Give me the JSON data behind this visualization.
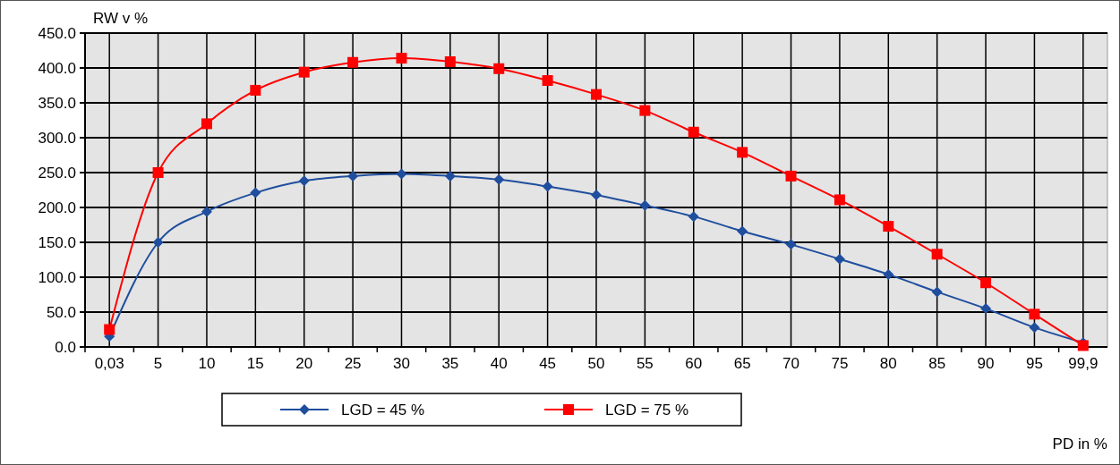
{
  "chart_data": {
    "type": "line",
    "xlabel": "PD in %",
    "ylabel": "RW v %",
    "categories": [
      "0,03",
      "5",
      "10",
      "15",
      "20",
      "25",
      "30",
      "35",
      "40",
      "45",
      "50",
      "55",
      "60",
      "65",
      "70",
      "75",
      "80",
      "85",
      "90",
      "95",
      "99,9"
    ],
    "series": [
      {
        "name": "LGD = 45 %",
        "color": "#1f4e9e",
        "marker": "diamond",
        "values": [
          15,
          150,
          194,
          221,
          238,
          245,
          248,
          245,
          240,
          230,
          218,
          203,
          187,
          166,
          147,
          126,
          104,
          79,
          55,
          28,
          6
        ]
      },
      {
        "name": "LGD = 75 %",
        "color": "#ff0000",
        "marker": "square",
        "values": [
          25,
          250,
          320,
          368,
          394,
          408,
          414,
          409,
          399,
          382,
          362,
          339,
          308,
          279,
          245,
          211,
          173,
          133,
          92,
          47,
          2
        ]
      }
    ],
    "ylim": [
      0,
      450
    ],
    "yticks": [
      {
        "value": 0,
        "label": "0.0"
      },
      {
        "value": 50,
        "label": "50.0"
      },
      {
        "value": 100,
        "label": "100.0"
      },
      {
        "value": 150,
        "label": "150.0"
      },
      {
        "value": 200,
        "label": "200.0"
      },
      {
        "value": 250,
        "label": "250.0"
      },
      {
        "value": 300,
        "label": "300.0"
      },
      {
        "value": 350,
        "label": "350.0"
      },
      {
        "value": 400,
        "label": "400.0"
      },
      {
        "value": 450,
        "label": "450.0"
      }
    ],
    "grid": true,
    "legend": "bottom"
  }
}
